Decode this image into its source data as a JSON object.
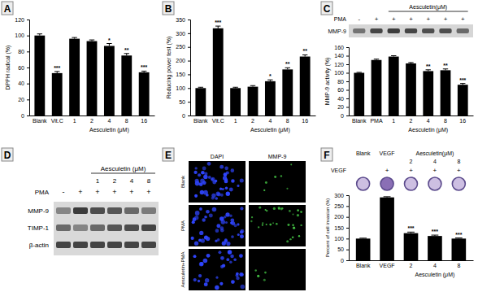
{
  "chart_data": [
    {
      "type": "bar",
      "title": "A",
      "categories": [
        "Blank",
        "Vit.C",
        "1",
        "2",
        "4",
        "8",
        "16"
      ],
      "values": [
        100,
        53,
        96,
        93,
        87,
        75,
        54
      ],
      "errors": [
        2,
        2,
        1.5,
        1.5,
        3,
        2.5,
        1.5
      ],
      "annotations": [
        null,
        "***",
        null,
        null,
        "*",
        "**",
        "***"
      ],
      "xlabel": "Aesculetin (μM)",
      "ylabel": "DPPH radical (%)",
      "color": "#000000",
      "ylim": [
        0,
        120
      ],
      "yticks": [
        0,
        20,
        40,
        60,
        80,
        100,
        120
      ]
    },
    {
      "type": "bar",
      "title": "B",
      "categories": [
        "Blank",
        "Vit.C",
        "1",
        "2",
        "4",
        "8",
        "16"
      ],
      "values": [
        100,
        318,
        100,
        105,
        125,
        168,
        215
      ],
      "errors": [
        3,
        8,
        3,
        4,
        5,
        6,
        6
      ],
      "annotations": [
        null,
        "***",
        null,
        null,
        "*",
        "**",
        "**"
      ],
      "xlabel": "Aesculetin (μM)",
      "ylabel": "Reducing power test (%)",
      "color": "#000000",
      "ylim": [
        0,
        350
      ],
      "yticks": [
        0,
        50,
        100,
        150,
        200,
        250,
        300,
        350
      ]
    },
    {
      "type": "bar",
      "title": "C",
      "categories": [
        "Blank",
        "PMA",
        "1",
        "2",
        "4",
        "8",
        "16"
      ],
      "values": [
        100,
        130,
        138,
        122,
        104,
        106,
        72
      ],
      "errors": [
        1,
        2,
        2,
        2,
        3,
        3,
        3
      ],
      "annotations": [
        null,
        null,
        null,
        null,
        "**",
        "**",
        "***"
      ],
      "xlabel": "Aesculetin (μM)",
      "ylabel": "MMP-9 activity (%)",
      "color": "#000000",
      "ylim": [
        0,
        160
      ],
      "yticks": [
        0,
        20,
        40,
        60,
        80,
        100,
        120,
        140,
        160
      ]
    },
    {
      "type": "bar",
      "title": "F",
      "categories": [
        "Blank",
        "VEGF",
        "2",
        "4",
        "8"
      ],
      "values": [
        100,
        290,
        125,
        112,
        100
      ],
      "errors": [
        2,
        3,
        5,
        4,
        3
      ],
      "annotations": [
        null,
        null,
        "***",
        "***",
        "***"
      ],
      "xlabel": "Aesculetin (μM)",
      "ylabel": "Percent of cell invasion (%)",
      "color": "#000000",
      "ylim": [
        0,
        300
      ],
      "yticks": [
        0,
        50,
        100,
        150,
        200,
        250,
        300
      ]
    }
  ],
  "blots": [
    {
      "header": "Aesculetin(μM)",
      "treatment": "PMA",
      "lanes": [
        "-",
        "+",
        "+",
        "+",
        "+",
        "+",
        "+"
      ],
      "bands": [
        "MMP-9"
      ]
    },
    {
      "title": "D",
      "header": "Aesculetin (μM)",
      "doses": [
        "1",
        "2",
        "4",
        "8"
      ],
      "treatment": "PMA",
      "lanes": [
        "-",
        "+",
        "+",
        "+",
        "+",
        "+"
      ],
      "bands": [
        "MMP-9",
        "TIMP-1",
        "β-actin"
      ]
    }
  ],
  "microscopy": {
    "title": "E",
    "columns": [
      "DAPI",
      "MMP-9"
    ],
    "rows": [
      "Blank",
      "PMA",
      "Aesculetin+PMA"
    ]
  },
  "invasion_assay": {
    "header": "Aesculetin(μM)",
    "groups": [
      "Blank",
      "VEGF"
    ],
    "doses": [
      "2",
      "4",
      "8"
    ],
    "treatment": "VEGF",
    "lanes": [
      null,
      "+",
      "+",
      "+",
      "+"
    ]
  }
}
